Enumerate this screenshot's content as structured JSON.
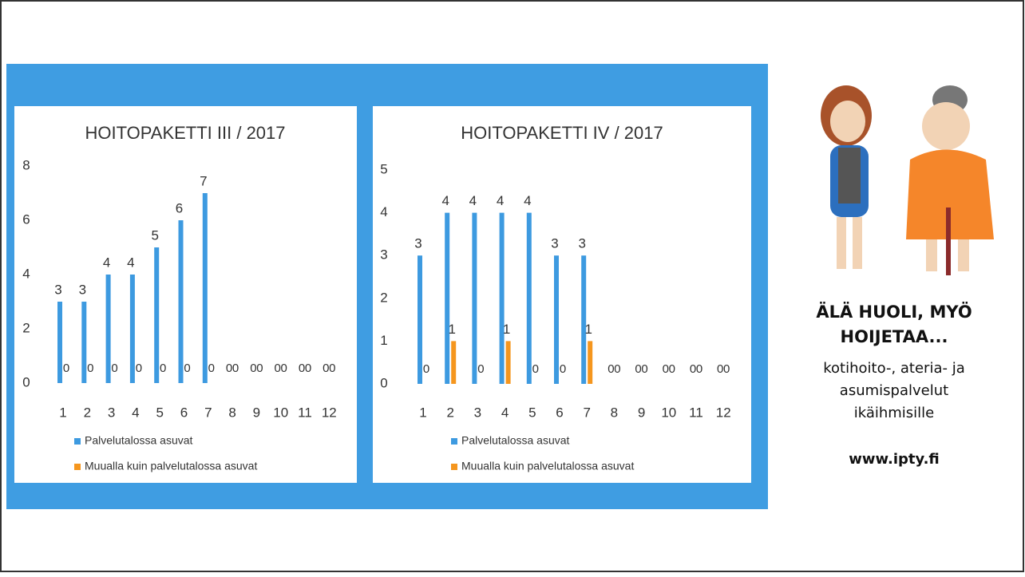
{
  "chart_data": [
    {
      "type": "bar",
      "title": "HOITOPAKETTI III / 2017",
      "categories": [
        "1",
        "2",
        "3",
        "4",
        "5",
        "6",
        "7",
        "8",
        "9",
        "10",
        "11",
        "12"
      ],
      "series": [
        {
          "name": "Palvelutalossa asuvat",
          "color": "#3d9ae0",
          "values": [
            3,
            3,
            4,
            4,
            5,
            6,
            7,
            0,
            0,
            0,
            0,
            0
          ]
        },
        {
          "name": "Muualla kuin palvelutalossa asuvat",
          "color": "#f5961e",
          "values": [
            0,
            0,
            0,
            0,
            0,
            0,
            0,
            0,
            0,
            0,
            0,
            0
          ]
        }
      ],
      "ylim": [
        0,
        8
      ],
      "yticks": [
        0,
        2,
        4,
        6,
        8
      ],
      "grid": false
    },
    {
      "type": "bar",
      "title": "HOITOPAKETTI IV / 2017",
      "categories": [
        "1",
        "2",
        "3",
        "4",
        "5",
        "6",
        "7",
        "8",
        "9",
        "10",
        "11",
        "12"
      ],
      "series": [
        {
          "name": "Palvelutalossa asuvat",
          "color": "#3d9ae0",
          "values": [
            3,
            4,
            4,
            4,
            4,
            3,
            3,
            0,
            0,
            0,
            0,
            0
          ]
        },
        {
          "name": "Muualla kuin palvelutalossa asuvat",
          "color": "#f5961e",
          "values": [
            0,
            1,
            0,
            1,
            0,
            0,
            1,
            0,
            0,
            0,
            0,
            0
          ]
        }
      ],
      "ylim": [
        0,
        5
      ],
      "yticks": [
        0,
        1,
        2,
        3,
        4,
        5
      ],
      "grid": false
    }
  ],
  "side_panel": {
    "slogan": [
      "ÄLÄ HUOLI, MYÖ",
      "HOIJETAA..."
    ],
    "description": [
      "kotihoito-, ateria- ja",
      "asumispalvelut",
      "ikäihmisille"
    ],
    "url": "www.ipty.fi"
  }
}
